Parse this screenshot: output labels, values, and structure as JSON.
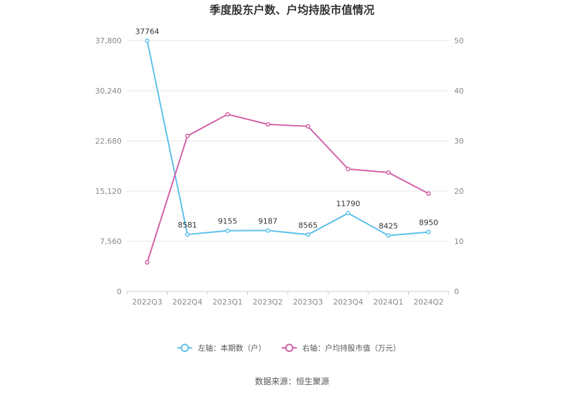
{
  "chart_data": {
    "type": "line",
    "title": "季度股东户数、户均持股市值情况",
    "categories": [
      "2022Q3",
      "2022Q4",
      "2023Q1",
      "2023Q2",
      "2023Q3",
      "2023Q4",
      "2024Q1",
      "2024Q2"
    ],
    "y_left": {
      "ylim": [
        0,
        37800
      ],
      "ticks": [
        "0",
        "7,560",
        "15,120",
        "22,680",
        "30,240",
        "37,800"
      ]
    },
    "y_right": {
      "ylim": [
        0,
        50
      ],
      "ticks": [
        "0",
        "10",
        "20",
        "30",
        "40",
        "50"
      ]
    },
    "series": [
      {
        "name": "左轴：本期数（户）",
        "axis": "left",
        "color": "#5bc0eb",
        "values": [
          37764,
          8581,
          9155,
          9187,
          8565,
          11790,
          8425,
          8950
        ],
        "labels": [
          "37764",
          "8581",
          "9155",
          "9187",
          "8565",
          "11790",
          "8425",
          "8950"
        ]
      },
      {
        "name": "右轴：户均持股市值（万元）",
        "axis": "right",
        "color": "#d15fa6",
        "values": [
          5.8,
          31.0,
          35.3,
          33.3,
          32.9,
          24.4,
          23.7,
          19.5
        ]
      }
    ],
    "grid": true,
    "legend": "bottom"
  },
  "source_text": "数据来源：恒生聚源"
}
